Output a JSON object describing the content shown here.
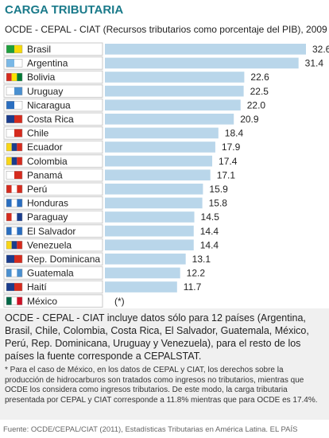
{
  "chart_data": {
    "type": "bar",
    "orientation": "horizontal",
    "title": "CARGA TRIBUTARIA",
    "subtitle": "OCDE - CEPAL - CIAT (Recursos tributarios como porcentaje del PIB), 2009",
    "categories": [
      "Brasil",
      "Argentina",
      "Bolivia",
      "Uruguay",
      "Nicaragua",
      "Costa Rica",
      "Chile",
      "Ecuador",
      "Colombia",
      "Panamá",
      "Perú",
      "Honduras",
      "Paraguay",
      "El Salvador",
      "Venezuela",
      "Rep. Dominicana",
      "Guatemala",
      "Haití",
      "México"
    ],
    "values": [
      32.6,
      31.4,
      22.6,
      22.5,
      22.0,
      20.9,
      18.4,
      17.9,
      17.4,
      17.1,
      15.9,
      15.8,
      14.5,
      14.4,
      14.4,
      13.1,
      12.2,
      11.7,
      null
    ],
    "value_labels": [
      "32.6",
      "31.4",
      "22.6",
      "22.5",
      "22.0",
      "20.9",
      "18.4",
      "17.9",
      "17.4",
      "17.1",
      "15.9",
      "15.8",
      "14.5",
      "14.4",
      "14.4",
      "13.1",
      "12.2",
      "11.7",
      "(*)"
    ],
    "color": "#b9d6ea",
    "note": "OCDE - CEPAL - CIAT incluye datos sólo para 12 países (Argentina, Brasil, Chile, Colombia, Costa Rica, El Salvador, Guatemala, México, Perú, Rep. Dominicana, Uruguay y Venezuela), para el resto de los países la fuente corresponde a CEPALSTAT.",
    "footnote": "* Para el caso de México, en los datos de CEPAL y CIAT, los derechos sobre la producción de hidrocarburos son tratados como ingresos no tributarios, mientras que OCDE los considera como ingresos tributarios. De este modo, la carga tributaria presentada por CEPAL y CIAT corresponde a 11.8% mientras que para OCDE es 17.4%.",
    "source": "Fuente: OCDE/CEPAL/CIAT (2011), Estadísticas Tributarias en América Latina.   EL PAÍS"
  }
}
